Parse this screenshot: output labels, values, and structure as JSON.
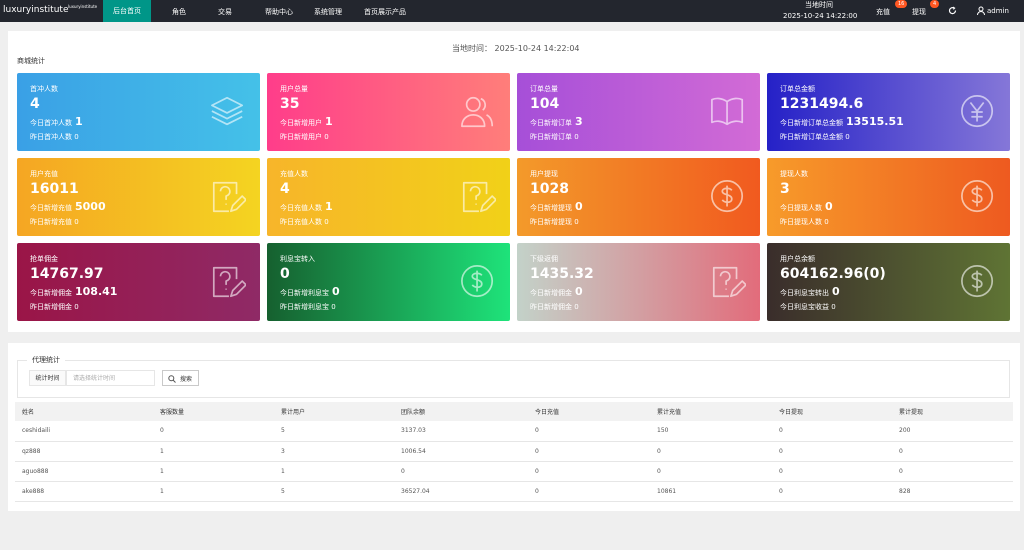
{
  "nav": {
    "brand": "luxuryinstitute",
    "brand_small": "luxuryinstitute",
    "items": [
      "后台首页",
      "角色",
      "交易",
      "帮助中心",
      "系统管理",
      "首页展示产品"
    ],
    "time_label": "当地时间",
    "time_value": "2025-10-24 14:22:00",
    "recharge": "充值",
    "recharge_badge": "16",
    "withdraw": "提现",
    "withdraw_badge": "4",
    "user": "admin"
  },
  "stats": {
    "local_time": "当地时间：  2025-10-24 14:22:04",
    "section_title": "商城统计",
    "cards": [
      {
        "title": "首冲人数",
        "value": "4",
        "line1_label": "今日首冲人数",
        "line1_value": "1",
        "line2": "昨日首冲人数 0"
      },
      {
        "title": "用户总量",
        "value": "35",
        "line1_label": "今日新增用户",
        "line1_value": "1",
        "line2": "昨日新增用户 0"
      },
      {
        "title": "订单总量",
        "value": "104",
        "line1_label": "今日新增订单",
        "line1_value": "3",
        "line2": "昨日新增订单 0"
      },
      {
        "title": "订单总金额",
        "value": "1231494.6",
        "line1_label": "今日新增订单总金额",
        "line1_value": "13515.51",
        "line2": "昨日新增订单总金额 0"
      },
      {
        "title": "用户充值",
        "value": "16011",
        "line1_label": "今日新增充值",
        "line1_value": "5000",
        "line2": "昨日新增充值 0"
      },
      {
        "title": "充值人数",
        "value": "4",
        "line1_label": "今日充值人数",
        "line1_value": "1",
        "line2": "昨日充值人数 0"
      },
      {
        "title": "用户提现",
        "value": "1028",
        "line1_label": "今日新增提现",
        "line1_value": "0",
        "line2": "昨日新增提现 0"
      },
      {
        "title": "提现人数",
        "value": "3",
        "line1_label": "今日提现人数",
        "line1_value": "0",
        "line2": "昨日提现人数 0"
      },
      {
        "title": "抢单佣金",
        "value": "14767.97",
        "line1_label": "今日新增佣金",
        "line1_value": "108.41",
        "line2": "昨日新增佣金 0"
      },
      {
        "title": "利息宝转入",
        "value": "0",
        "line1_label": "今日新增利息宝",
        "line1_value": "0",
        "line2": "昨日新增利息宝 0"
      },
      {
        "title": "下级返佣",
        "value": "1435.32",
        "line1_label": "今日新增佣金",
        "line1_value": "0",
        "line2": "昨日新增佣金 0"
      },
      {
        "title": "用户总余额",
        "value": "604162.96(0)",
        "line1_label": "今日利息宝转出",
        "line1_value": "0",
        "line2": "今日利息宝收益 0"
      }
    ]
  },
  "agent": {
    "legend": "代理统计",
    "filter_label": "统计时间",
    "filter_placeholder": "请选择统计时间",
    "search": "搜索",
    "table": {
      "headers": [
        "姓名",
        "客服数量",
        "累计用户",
        "团队余额",
        "今日充值",
        "累计充值",
        "今日提现",
        "累计提现"
      ],
      "rows": [
        [
          "ceshidaili",
          "0",
          "5",
          "3137.03",
          "0",
          "150",
          "0",
          "200"
        ],
        [
          "qz888",
          "1",
          "3",
          "1006.54",
          "0",
          "0",
          "0",
          "0"
        ],
        [
          "aguo888",
          "1",
          "1",
          "0",
          "0",
          "0",
          "0",
          "0"
        ],
        [
          "ake888",
          "1",
          "5",
          "36527.04",
          "0",
          "10861",
          "0",
          "828"
        ]
      ]
    }
  }
}
